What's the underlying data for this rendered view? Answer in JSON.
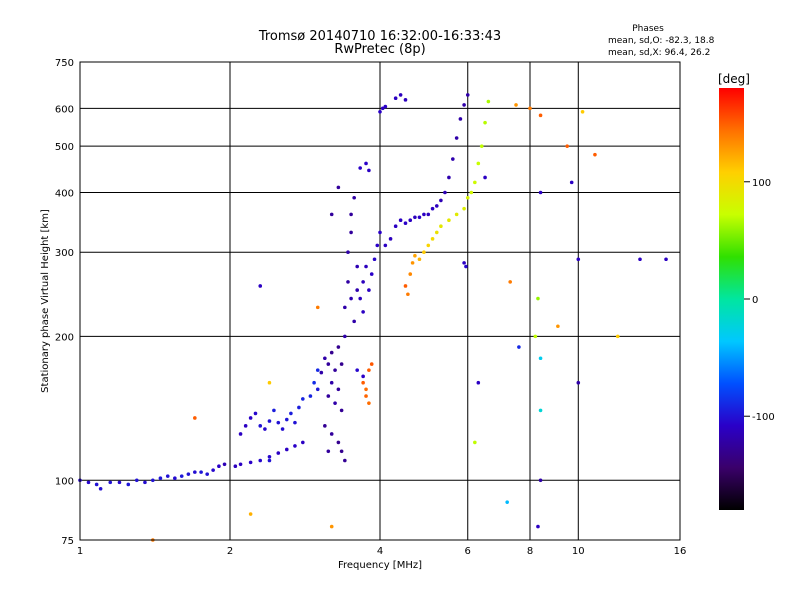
{
  "chart_data": {
    "type": "scatter",
    "title": "Tromsø 20140710 16:32:00-16:33:43",
    "subtitle": "RwPretec (8p)",
    "phases": {
      "heading": "Phases",
      "line_o": "mean, sd,O: -82.3, 18.8",
      "line_x": "mean, sd,X:  96.4, 26.2"
    },
    "xlabel": "Frequency [MHz]",
    "ylabel": "Stationary phase Virtual Height [km]",
    "xscale": "log",
    "yscale": "log",
    "xlim": [
      1,
      16
    ],
    "ylim": [
      75,
      750
    ],
    "grid": true,
    "x_ticks": [
      1,
      2,
      4,
      6,
      8,
      10,
      16
    ],
    "x_grid": [
      2,
      4,
      6,
      8,
      10
    ],
    "y_ticks": [
      75,
      100,
      200,
      300,
      400,
      500,
      600,
      750
    ],
    "y_grid": [
      100,
      200,
      300,
      400,
      500,
      600
    ],
    "colorbar": {
      "label": "[deg]",
      "range": [
        -180,
        180
      ],
      "ticks": [
        100,
        0,
        -100
      ],
      "colormap": "rainbow"
    },
    "series": [
      {
        "points": [
          [
            1.0,
            100,
            -105
          ],
          [
            1.04,
            99,
            -105
          ],
          [
            1.08,
            98,
            -100
          ],
          [
            1.1,
            96,
            -102
          ],
          [
            1.15,
            99,
            -100
          ],
          [
            1.2,
            99,
            -105
          ],
          [
            1.25,
            98,
            -98
          ],
          [
            1.3,
            100,
            -100
          ],
          [
            1.35,
            99,
            -103
          ],
          [
            1.4,
            100,
            -100
          ],
          [
            1.45,
            101,
            -98
          ],
          [
            1.5,
            102,
            -100
          ],
          [
            1.55,
            101,
            -103
          ],
          [
            1.6,
            102,
            -97
          ],
          [
            1.65,
            103,
            -100
          ],
          [
            1.7,
            104,
            -102
          ],
          [
            1.75,
            104,
            -98
          ],
          [
            1.8,
            103,
            -100
          ],
          [
            1.85,
            105,
            -105
          ],
          [
            1.9,
            107,
            -108
          ],
          [
            1.95,
            108,
            -115
          ],
          [
            2.05,
            107,
            -112
          ],
          [
            2.1,
            108,
            -110
          ],
          [
            2.2,
            109,
            -108
          ],
          [
            2.3,
            110,
            -105
          ],
          [
            2.4,
            112,
            -105
          ],
          [
            2.5,
            114,
            -110
          ],
          [
            2.6,
            116,
            -110
          ],
          [
            2.7,
            118,
            -108
          ],
          [
            2.8,
            120,
            -110
          ],
          [
            2.1,
            125,
            -110
          ],
          [
            2.15,
            130,
            -110
          ],
          [
            2.2,
            135,
            -108
          ],
          [
            2.25,
            138,
            -105
          ],
          [
            2.3,
            130,
            -100
          ],
          [
            2.35,
            128,
            -105
          ],
          [
            2.4,
            133,
            -100
          ],
          [
            2.45,
            140,
            -95
          ],
          [
            2.5,
            132,
            -100
          ],
          [
            2.55,
            128,
            -102
          ],
          [
            2.6,
            134,
            -98
          ],
          [
            2.65,
            138,
            -95
          ],
          [
            2.7,
            132,
            -100
          ],
          [
            2.75,
            142,
            -95
          ],
          [
            2.8,
            148,
            -92
          ],
          [
            2.9,
            150,
            -92
          ],
          [
            2.95,
            160,
            -88
          ],
          [
            3.0,
            170,
            -90
          ],
          [
            3.0,
            155,
            -98
          ],
          [
            3.05,
            168,
            -120
          ],
          [
            3.1,
            180,
            -120
          ],
          [
            3.15,
            175,
            -125
          ],
          [
            3.15,
            150,
            -125
          ],
          [
            3.2,
            185,
            -130
          ],
          [
            3.2,
            160,
            -120
          ],
          [
            3.25,
            170,
            -125
          ],
          [
            3.25,
            145,
            -120
          ],
          [
            3.3,
            190,
            -130
          ],
          [
            3.3,
            155,
            -125
          ],
          [
            3.35,
            175,
            -130
          ],
          [
            3.35,
            140,
            -128
          ],
          [
            3.1,
            130,
            -128
          ],
          [
            3.2,
            125,
            -125
          ],
          [
            3.3,
            120,
            -130
          ],
          [
            3.35,
            115,
            -130
          ],
          [
            3.4,
            110,
            -128
          ],
          [
            3.15,
            115,
            -125
          ],
          [
            3.4,
            200,
            -120
          ],
          [
            3.4,
            230,
            -120
          ],
          [
            3.45,
            260,
            -122
          ],
          [
            3.45,
            300,
            -120
          ],
          [
            3.5,
            330,
            -125
          ],
          [
            3.5,
            360,
            -125
          ],
          [
            3.55,
            390,
            -122
          ],
          [
            3.5,
            240,
            -118
          ],
          [
            3.55,
            215,
            -120
          ],
          [
            3.6,
            250,
            -118
          ],
          [
            3.6,
            280,
            -116
          ],
          [
            3.65,
            240,
            -112
          ],
          [
            3.7,
            260,
            -112
          ],
          [
            3.7,
            225,
            -110
          ],
          [
            3.75,
            280,
            -112
          ],
          [
            3.8,
            250,
            -110
          ],
          [
            3.85,
            270,
            -108
          ],
          [
            3.9,
            290,
            -106
          ],
          [
            3.95,
            310,
            -108
          ],
          [
            4.0,
            330,
            -108
          ],
          [
            4.1,
            310,
            -110
          ],
          [
            4.2,
            320,
            -112
          ],
          [
            4.3,
            340,
            -110
          ],
          [
            4.4,
            350,
            -110
          ],
          [
            4.5,
            345,
            -108
          ],
          [
            4.6,
            350,
            -110
          ],
          [
            4.7,
            355,
            -112
          ],
          [
            4.8,
            355,
            -108
          ],
          [
            4.9,
            360,
            -110
          ],
          [
            5.0,
            360,
            -112
          ],
          [
            5.1,
            370,
            -110
          ],
          [
            5.2,
            375,
            -112
          ],
          [
            5.3,
            385,
            -115
          ],
          [
            5.4,
            400,
            -115
          ],
          [
            5.5,
            430,
            -118
          ],
          [
            5.6,
            470,
            -118
          ],
          [
            5.7,
            520,
            -120
          ],
          [
            5.8,
            570,
            -120
          ],
          [
            5.9,
            610,
            -120
          ],
          [
            6.0,
            640,
            -120
          ],
          [
            3.65,
            450,
            -108
          ],
          [
            3.75,
            460,
            -108
          ],
          [
            3.8,
            445,
            -110
          ],
          [
            4.0,
            590,
            -108
          ],
          [
            4.05,
            600,
            -110
          ],
          [
            4.1,
            605,
            -108
          ],
          [
            4.3,
            630,
            -110
          ],
          [
            4.4,
            640,
            -112
          ],
          [
            4.5,
            625,
            -112
          ],
          [
            3.3,
            410,
            -125
          ],
          [
            3.2,
            360,
            -125
          ],
          [
            3.6,
            170,
            -105
          ],
          [
            3.7,
            165,
            -108
          ],
          [
            3.7,
            160,
            150
          ],
          [
            3.75,
            155,
            145
          ],
          [
            3.8,
            170,
            150
          ],
          [
            3.85,
            175,
            152
          ],
          [
            3.75,
            150,
            148
          ],
          [
            3.8,
            145,
            145
          ],
          [
            4.5,
            255,
            150
          ],
          [
            4.55,
            245,
            140
          ],
          [
            4.6,
            270,
            135
          ],
          [
            4.65,
            285,
            130
          ],
          [
            4.7,
            295,
            125
          ],
          [
            4.8,
            290,
            118
          ],
          [
            4.9,
            300,
            110
          ],
          [
            5.0,
            310,
            105
          ],
          [
            5.1,
            320,
            100
          ],
          [
            5.2,
            330,
            95
          ],
          [
            5.3,
            340,
            90
          ],
          [
            5.5,
            350,
            90
          ],
          [
            5.7,
            360,
            88
          ],
          [
            5.9,
            370,
            85
          ],
          [
            6.0,
            390,
            82
          ],
          [
            6.1,
            400,
            78
          ],
          [
            6.2,
            420,
            75
          ],
          [
            6.3,
            460,
            72
          ],
          [
            6.4,
            500,
            70
          ],
          [
            6.5,
            560,
            68
          ],
          [
            6.6,
            620,
            65
          ],
          [
            7.5,
            610,
            130
          ],
          [
            8.0,
            600,
            140
          ],
          [
            8.4,
            580,
            150
          ],
          [
            9.5,
            500,
            150
          ],
          [
            10.2,
            590,
            110
          ],
          [
            10.8,
            480,
            150
          ],
          [
            6.5,
            430,
            -110
          ],
          [
            8.4,
            400,
            -110
          ],
          [
            9.7,
            420,
            -110
          ],
          [
            10.0,
            290,
            -110
          ],
          [
            13.3,
            290,
            -110
          ],
          [
            15.0,
            290,
            -110
          ],
          [
            5.9,
            285,
            -110
          ],
          [
            5.95,
            280,
            -105
          ],
          [
            8.2,
            200,
            70
          ],
          [
            8.3,
            240,
            60
          ],
          [
            8.4,
            180,
            -30
          ],
          [
            7.6,
            190,
            -90
          ],
          [
            6.3,
            160,
            -110
          ],
          [
            8.4,
            140,
            -20
          ],
          [
            6.2,
            120,
            70
          ],
          [
            8.4,
            100,
            -120
          ],
          [
            10.0,
            160,
            -120
          ],
          [
            7.2,
            90,
            -40
          ],
          [
            8.3,
            80,
            -110
          ],
          [
            7.3,
            260,
            140
          ],
          [
            9.1,
            210,
            130
          ],
          [
            12.0,
            200,
            110
          ],
          [
            2.3,
            255,
            -110
          ],
          [
            3.0,
            230,
            140
          ],
          [
            1.7,
            135,
            150
          ],
          [
            2.4,
            110,
            -100
          ],
          [
            1.4,
            75,
            140
          ],
          [
            2.4,
            160,
            110
          ],
          [
            3.2,
            80,
            130
          ],
          [
            2.2,
            85,
            120
          ]
        ]
      }
    ]
  }
}
